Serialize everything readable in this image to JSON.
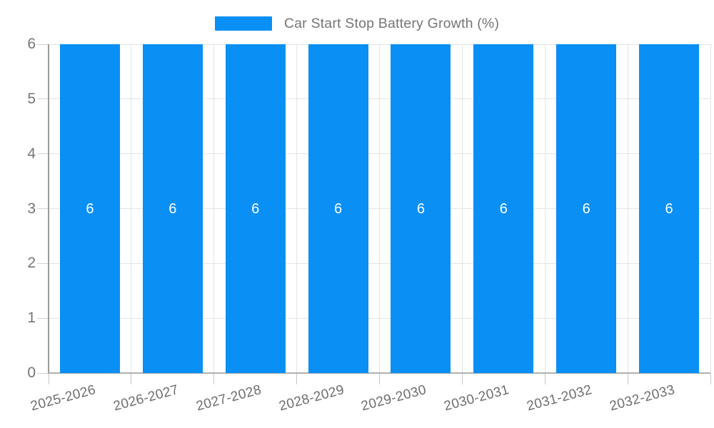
{
  "chart_data": {
    "type": "bar",
    "title": "Car Start Stop Battery Growth (%)",
    "categories": [
      "2025-2026",
      "2026-2027",
      "2027-2028",
      "2028-2029",
      "2029-2030",
      "2030-2031",
      "2031-2032",
      "2032-2033"
    ],
    "series": [
      {
        "name": "Car Start Stop Battery Growth (%)",
        "values": [
          6,
          6,
          6,
          6,
          6,
          6,
          6,
          6
        ]
      }
    ],
    "bar_value_labels": [
      "6",
      "6",
      "6",
      "6",
      "6",
      "6",
      "6",
      "6"
    ],
    "xlabel": "",
    "ylabel": "",
    "ylim": [
      0,
      6
    ],
    "yticks": [
      0,
      1,
      2,
      3,
      4,
      5,
      6
    ],
    "grid": true,
    "legend_position": "top",
    "colors": {
      "bar": "#0A8FF4",
      "grid": "#E4E4E4",
      "axis_y": "#9B9B9B",
      "axis_x": "#B0B0B0",
      "tick_y": "#D2D2D2",
      "tick_x": "#C6C6C6",
      "text": "#757575",
      "x_label_text": "#6E6E6E",
      "bar_label": "#FFFFFF",
      "background": "#FFFFFF"
    }
  }
}
